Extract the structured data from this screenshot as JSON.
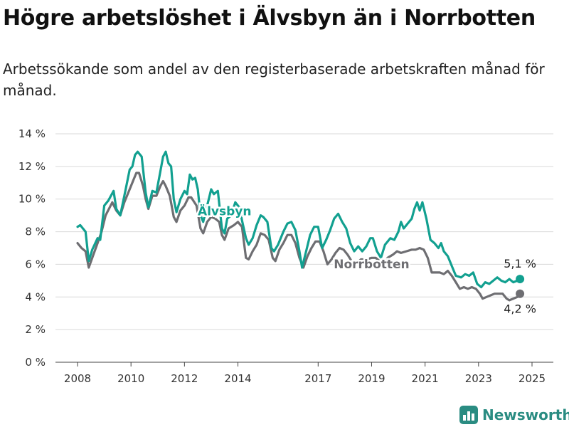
{
  "title": "Högre arbetslöshet i Älvsbyn än i Norrbotten",
  "subtitle": "Arbetssökande som andel av den registerbaserade arbetskraften månad för månad.",
  "brand": {
    "name": "Newsworthy",
    "icon": "bar-chart-logo-icon",
    "color": "#2a8c82"
  },
  "chart_data": {
    "type": "line",
    "title": "",
    "xlabel": "",
    "ylabel": "",
    "x_ticks": [
      2008,
      2010,
      2012,
      2014,
      2017,
      2019,
      2021,
      2023,
      2025
    ],
    "x_tick_labels": [
      "2008",
      "2010",
      "2012",
      "2014",
      "2017",
      "2019",
      "2021",
      "2023",
      "2025"
    ],
    "y_ticks": [
      0,
      2,
      4,
      6,
      8,
      10,
      12,
      14
    ],
    "y_tick_labels": [
      "0 %",
      "2 %",
      "4 %",
      "6 %",
      "8 %",
      "10 %",
      "12 %",
      "14 %"
    ],
    "ylim": [
      0,
      14
    ],
    "grid": true,
    "series": [
      {
        "name": "Älvsbyn",
        "label": "Älvsbyn",
        "color": "#12a090",
        "end_label": "5,1 %",
        "points": [
          [
            2008.0,
            8.3
          ],
          [
            2008.1,
            8.4
          ],
          [
            2008.3,
            8.0
          ],
          [
            2008.42,
            6.2
          ],
          [
            2008.55,
            6.9
          ],
          [
            2008.75,
            7.6
          ],
          [
            2008.85,
            7.5
          ],
          [
            2009.0,
            9.6
          ],
          [
            2009.15,
            9.9
          ],
          [
            2009.35,
            10.5
          ],
          [
            2009.45,
            9.4
          ],
          [
            2009.6,
            9.0
          ],
          [
            2009.8,
            10.6
          ],
          [
            2009.95,
            11.8
          ],
          [
            2010.05,
            12.0
          ],
          [
            2010.15,
            12.7
          ],
          [
            2010.25,
            12.9
          ],
          [
            2010.4,
            12.6
          ],
          [
            2010.55,
            10.4
          ],
          [
            2010.65,
            9.5
          ],
          [
            2010.8,
            10.5
          ],
          [
            2010.95,
            10.4
          ],
          [
            2011.1,
            11.7
          ],
          [
            2011.2,
            12.6
          ],
          [
            2011.3,
            12.9
          ],
          [
            2011.4,
            12.2
          ],
          [
            2011.5,
            12.0
          ],
          [
            2011.6,
            10.0
          ],
          [
            2011.7,
            9.2
          ],
          [
            2011.85,
            10.0
          ],
          [
            2012.0,
            10.5
          ],
          [
            2012.1,
            10.3
          ],
          [
            2012.2,
            11.5
          ],
          [
            2012.3,
            11.2
          ],
          [
            2012.4,
            11.3
          ],
          [
            2012.5,
            10.6
          ],
          [
            2012.6,
            9.0
          ],
          [
            2012.7,
            8.6
          ],
          [
            2012.85,
            9.6
          ],
          [
            2013.0,
            10.6
          ],
          [
            2013.1,
            10.3
          ],
          [
            2013.25,
            10.5
          ],
          [
            2013.4,
            8.2
          ],
          [
            2013.5,
            7.9
          ],
          [
            2013.6,
            8.8
          ],
          [
            2013.75,
            9.0
          ],
          [
            2013.9,
            9.8
          ],
          [
            2014.05,
            9.5
          ],
          [
            2014.15,
            8.7
          ],
          [
            2014.3,
            7.6
          ],
          [
            2014.4,
            7.2
          ],
          [
            2014.55,
            7.6
          ],
          [
            2014.7,
            8.4
          ],
          [
            2014.85,
            9.0
          ],
          [
            2014.95,
            8.9
          ],
          [
            2015.1,
            8.6
          ],
          [
            2015.25,
            7.0
          ],
          [
            2015.35,
            6.8
          ],
          [
            2015.5,
            7.2
          ],
          [
            2015.7,
            8.0
          ],
          [
            2015.85,
            8.5
          ],
          [
            2016.0,
            8.6
          ],
          [
            2016.15,
            8.1
          ],
          [
            2016.3,
            6.8
          ],
          [
            2016.4,
            5.8
          ],
          [
            2016.55,
            6.8
          ],
          [
            2016.7,
            7.8
          ],
          [
            2016.85,
            8.3
          ],
          [
            2017.0,
            8.3
          ],
          [
            2017.15,
            7.0
          ],
          [
            2017.3,
            7.5
          ],
          [
            2017.45,
            8.1
          ],
          [
            2017.6,
            8.8
          ],
          [
            2017.75,
            9.1
          ],
          [
            2017.9,
            8.6
          ],
          [
            2018.05,
            8.2
          ],
          [
            2018.2,
            7.3
          ],
          [
            2018.35,
            6.8
          ],
          [
            2018.5,
            7.1
          ],
          [
            2018.65,
            6.8
          ],
          [
            2018.8,
            7.1
          ],
          [
            2018.95,
            7.6
          ],
          [
            2019.05,
            7.6
          ],
          [
            2019.2,
            6.8
          ],
          [
            2019.35,
            6.4
          ],
          [
            2019.5,
            7.2
          ],
          [
            2019.7,
            7.6
          ],
          [
            2019.85,
            7.5
          ],
          [
            2020.0,
            8.0
          ],
          [
            2020.1,
            8.6
          ],
          [
            2020.2,
            8.2
          ],
          [
            2020.35,
            8.5
          ],
          [
            2020.5,
            8.8
          ],
          [
            2020.6,
            9.4
          ],
          [
            2020.7,
            9.8
          ],
          [
            2020.8,
            9.3
          ],
          [
            2020.9,
            9.8
          ],
          [
            2021.05,
            8.8
          ],
          [
            2021.2,
            7.5
          ],
          [
            2021.35,
            7.3
          ],
          [
            2021.5,
            7.0
          ],
          [
            2021.6,
            7.3
          ],
          [
            2021.7,
            6.8
          ],
          [
            2021.85,
            6.5
          ],
          [
            2022.0,
            5.9
          ],
          [
            2022.15,
            5.3
          ],
          [
            2022.35,
            5.2
          ],
          [
            2022.5,
            5.4
          ],
          [
            2022.65,
            5.3
          ],
          [
            2022.8,
            5.5
          ],
          [
            2022.95,
            4.8
          ],
          [
            2023.1,
            4.6
          ],
          [
            2023.25,
            4.9
          ],
          [
            2023.4,
            4.8
          ],
          [
            2023.55,
            5.0
          ],
          [
            2023.7,
            5.2
          ],
          [
            2023.85,
            5.0
          ],
          [
            2024.0,
            4.9
          ],
          [
            2024.15,
            5.1
          ],
          [
            2024.3,
            4.9
          ],
          [
            2024.45,
            5.0
          ],
          [
            2024.55,
            5.1
          ]
        ]
      },
      {
        "name": "Norrbotten",
        "label": "Norrbotten",
        "color": "#6e6e72",
        "end_label": "4,2 %",
        "points": [
          [
            2008.0,
            7.3
          ],
          [
            2008.15,
            7.0
          ],
          [
            2008.3,
            6.8
          ],
          [
            2008.42,
            5.8
          ],
          [
            2008.55,
            6.4
          ],
          [
            2008.75,
            7.3
          ],
          [
            2008.9,
            8.0
          ],
          [
            2009.05,
            9.0
          ],
          [
            2009.3,
            9.8
          ],
          [
            2009.45,
            9.3
          ],
          [
            2009.6,
            9.0
          ],
          [
            2009.75,
            9.8
          ],
          [
            2009.95,
            10.6
          ],
          [
            2010.1,
            11.2
          ],
          [
            2010.2,
            11.6
          ],
          [
            2010.3,
            11.6
          ],
          [
            2010.45,
            10.8
          ],
          [
            2010.55,
            10.0
          ],
          [
            2010.65,
            9.4
          ],
          [
            2010.8,
            10.2
          ],
          [
            2010.95,
            10.2
          ],
          [
            2011.1,
            10.8
          ],
          [
            2011.2,
            11.1
          ],
          [
            2011.3,
            10.8
          ],
          [
            2011.45,
            10.2
          ],
          [
            2011.6,
            8.9
          ],
          [
            2011.7,
            8.6
          ],
          [
            2011.85,
            9.3
          ],
          [
            2012.0,
            9.6
          ],
          [
            2012.15,
            10.1
          ],
          [
            2012.25,
            10.1
          ],
          [
            2012.45,
            9.6
          ],
          [
            2012.6,
            8.2
          ],
          [
            2012.7,
            7.9
          ],
          [
            2012.85,
            8.6
          ],
          [
            2013.0,
            8.9
          ],
          [
            2013.15,
            8.8
          ],
          [
            2013.3,
            8.6
          ],
          [
            2013.4,
            7.8
          ],
          [
            2013.5,
            7.5
          ],
          [
            2013.65,
            8.2
          ],
          [
            2013.85,
            8.4
          ],
          [
            2014.0,
            8.6
          ],
          [
            2014.15,
            8.3
          ],
          [
            2014.3,
            6.4
          ],
          [
            2014.4,
            6.3
          ],
          [
            2014.55,
            6.8
          ],
          [
            2014.7,
            7.2
          ],
          [
            2014.85,
            7.9
          ],
          [
            2015.0,
            7.8
          ],
          [
            2015.15,
            7.5
          ],
          [
            2015.3,
            6.4
          ],
          [
            2015.4,
            6.2
          ],
          [
            2015.55,
            6.9
          ],
          [
            2015.7,
            7.3
          ],
          [
            2015.85,
            7.8
          ],
          [
            2016.0,
            7.8
          ],
          [
            2016.15,
            7.3
          ],
          [
            2016.3,
            6.4
          ],
          [
            2016.45,
            5.8
          ],
          [
            2016.6,
            6.5
          ],
          [
            2016.75,
            7.0
          ],
          [
            2016.9,
            7.4
          ],
          [
            2017.05,
            7.4
          ],
          [
            2017.2,
            6.8
          ],
          [
            2017.35,
            6.0
          ],
          [
            2017.5,
            6.3
          ],
          [
            2017.65,
            6.7
          ],
          [
            2017.8,
            7.0
          ],
          [
            2017.95,
            6.9
          ],
          [
            2018.1,
            6.6
          ],
          [
            2018.25,
            6.2
          ],
          [
            2018.4,
            6.0
          ],
          [
            2018.6,
            6.3
          ],
          [
            2018.8,
            6.3
          ],
          [
            2019.0,
            6.4
          ],
          [
            2019.15,
            6.4
          ],
          [
            2019.3,
            6.2
          ],
          [
            2019.45,
            6.1
          ],
          [
            2019.6,
            6.4
          ],
          [
            2019.8,
            6.6
          ],
          [
            2019.95,
            6.8
          ],
          [
            2020.1,
            6.7
          ],
          [
            2020.3,
            6.8
          ],
          [
            2020.5,
            6.9
          ],
          [
            2020.65,
            6.9
          ],
          [
            2020.8,
            7.0
          ],
          [
            2020.95,
            6.9
          ],
          [
            2021.1,
            6.4
          ],
          [
            2021.25,
            5.5
          ],
          [
            2021.4,
            5.5
          ],
          [
            2021.55,
            5.5
          ],
          [
            2021.7,
            5.4
          ],
          [
            2021.85,
            5.6
          ],
          [
            2022.0,
            5.3
          ],
          [
            2022.15,
            4.9
          ],
          [
            2022.3,
            4.5
          ],
          [
            2022.45,
            4.6
          ],
          [
            2022.6,
            4.5
          ],
          [
            2022.75,
            4.6
          ],
          [
            2022.9,
            4.5
          ],
          [
            2023.05,
            4.2
          ],
          [
            2023.15,
            3.9
          ],
          [
            2023.3,
            4.0
          ],
          [
            2023.45,
            4.1
          ],
          [
            2023.6,
            4.2
          ],
          [
            2023.75,
            4.2
          ],
          [
            2023.9,
            4.2
          ],
          [
            2024.05,
            3.9
          ],
          [
            2024.15,
            3.8
          ],
          [
            2024.3,
            3.9
          ],
          [
            2024.45,
            4.0
          ],
          [
            2024.55,
            4.2
          ]
        ]
      }
    ]
  }
}
